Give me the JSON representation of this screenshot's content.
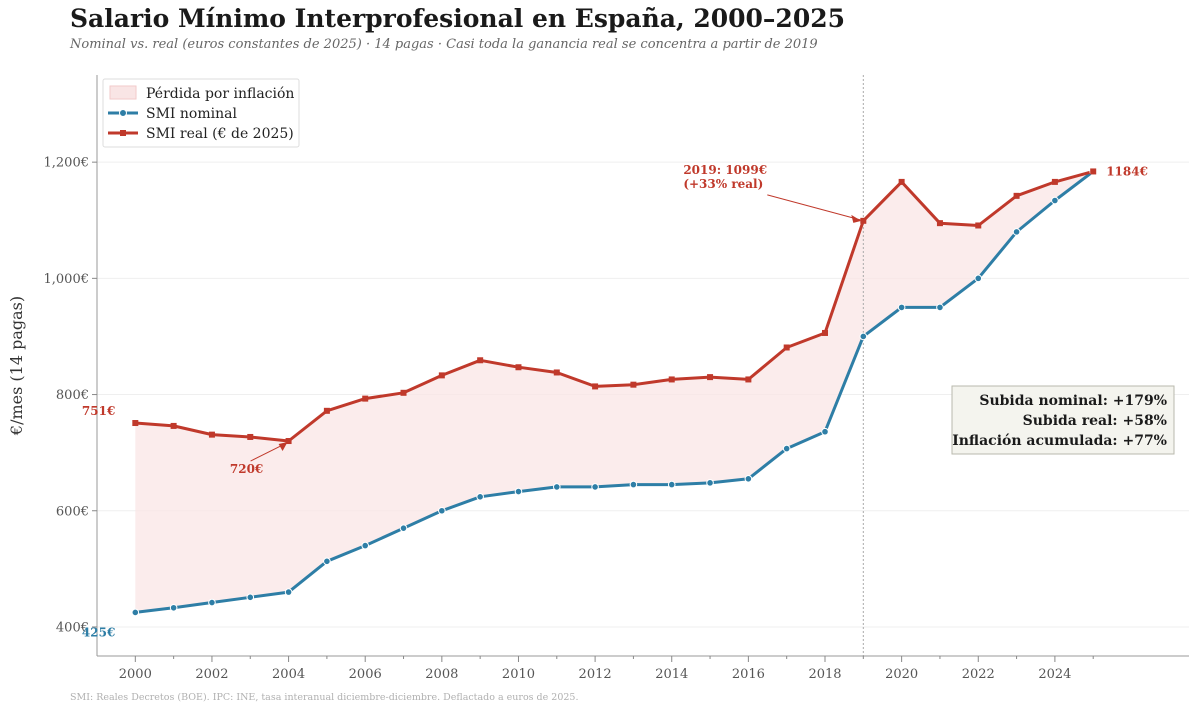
{
  "title": "Salario Mínimo Interprofesional en España, 2000–2025",
  "subtitle": "Nominal vs. real (euros constantes de 2025)  ·  14 pagas  ·  Casi toda la ganancia real se concentra a partir de 2019",
  "source": "SMI: Reales Decretos (BOE). IPC: INE, tasa interanual diciembre-diciembre. Deflactado a euros de 2025.",
  "colors": {
    "nominal": "#2e7ea6",
    "real": "#c0392b",
    "fill": "#f9e5e5"
  },
  "chart_data": {
    "type": "line",
    "ylabel": "€/mes (14 pagas)",
    "xlim": [
      1999,
      2027.5
    ],
    "ylim": [
      350,
      1350
    ],
    "x": [
      2000,
      2001,
      2002,
      2003,
      2004,
      2005,
      2006,
      2007,
      2008,
      2009,
      2010,
      2011,
      2012,
      2013,
      2014,
      2015,
      2016,
      2017,
      2018,
      2019,
      2020,
      2021,
      2022,
      2023,
      2024,
      2025
    ],
    "x_ticks": [
      2000,
      2002,
      2004,
      2006,
      2008,
      2010,
      2012,
      2014,
      2016,
      2018,
      2020,
      2022,
      2024
    ],
    "x_tick_labels": [
      "2000",
      "2002",
      "2004",
      "2006",
      "2008",
      "2010",
      "2012",
      "2014",
      "2016",
      "2018",
      "2020",
      "2022",
      "2024"
    ],
    "y_ticks": [
      400,
      600,
      800,
      1000,
      1200
    ],
    "y_tick_labels": [
      "400€",
      "600€",
      "800€",
      "1,000€",
      "1,200€"
    ],
    "series": [
      {
        "name": "SMI nominal",
        "values": [
          425,
          433,
          442,
          451,
          460,
          513,
          540,
          570,
          600,
          624,
          633,
          641,
          641,
          645,
          645,
          648,
          655,
          707,
          736,
          900,
          950,
          950,
          1000,
          1080,
          1134,
          1184
        ]
      },
      {
        "name": "SMI real (€ de 2025)",
        "values": [
          751,
          746,
          731,
          727,
          720,
          772,
          793,
          803,
          833,
          859,
          847,
          838,
          814,
          817,
          826,
          830,
          826,
          881,
          906,
          1099,
          1166,
          1095,
          1091,
          1142,
          1166,
          1184
        ]
      }
    ],
    "fill_label": "Pérdida por inflación",
    "vline_x": 2019,
    "annotations": {
      "start_real": "751€",
      "start_nominal": "425€",
      "min_real": "720€",
      "peak_line1": "2019: 1099€",
      "peak_line2": "(+33% real)",
      "end_value": "1184€"
    },
    "stats": [
      "Subida nominal: +179%",
      "Subida real: +58%",
      "Inflación acumulada: +77%"
    ]
  }
}
